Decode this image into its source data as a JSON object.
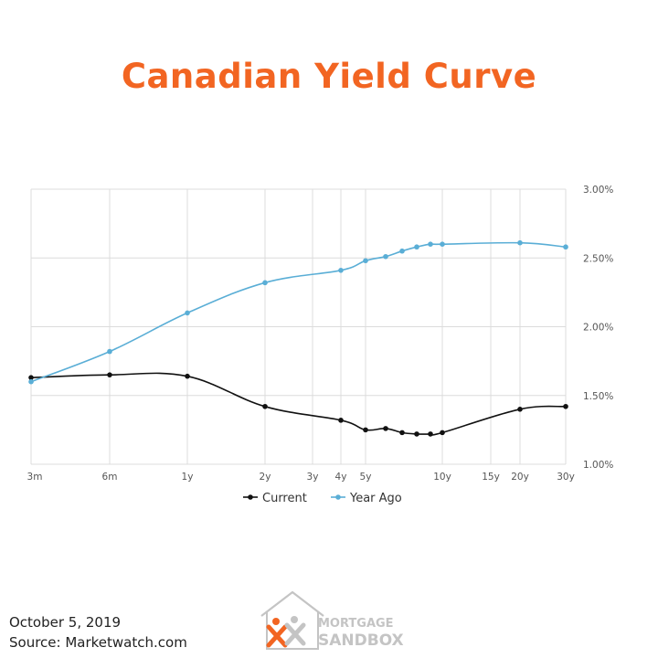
{
  "title": "Canadian Yield Curve",
  "footer": {
    "date": "October 5, 2019",
    "source": "Source: Marketwatch.com"
  },
  "logo": {
    "line1": "MORTGAGE",
    "line2": "SANDBOX"
  },
  "colors": {
    "title": "#f26522",
    "current": "#111111",
    "year_ago": "#5aaed6",
    "grid": "#dcdcdc",
    "logo_orange": "#f26522",
    "logo_gray": "#c4c4c4"
  },
  "chart_data": {
    "type": "line",
    "title": "Canadian Yield Curve",
    "xlabel": "",
    "ylabel": "",
    "ylim": [
      1.0,
      3.0
    ],
    "y_ticks": [
      1.0,
      1.5,
      2.0,
      2.5,
      3.0
    ],
    "y_tick_labels": [
      "1.00%",
      "1.50%",
      "2.00%",
      "2.50%",
      "3.00%"
    ],
    "y_axis_position": "right",
    "grid": true,
    "legend_position": "bottom",
    "x_ticks": [
      "3m",
      "6m",
      "1y",
      "2y",
      "3y",
      "4y",
      "5y",
      "10y",
      "15y",
      "20y",
      "30y"
    ],
    "series": [
      {
        "name": "Current",
        "color": "#111111",
        "points": [
          {
            "x": "3m",
            "y": 1.63
          },
          {
            "x": "6m",
            "y": 1.65
          },
          {
            "x": "1y",
            "y": 1.64
          },
          {
            "x": "2y",
            "y": 1.42
          },
          {
            "x": "4y",
            "y": 1.32
          },
          {
            "x": "5y",
            "y": 1.25
          },
          {
            "x": "6y",
            "y": 1.26
          },
          {
            "x": "7y",
            "y": 1.23
          },
          {
            "x": "8y",
            "y": 1.22
          },
          {
            "x": "9y",
            "y": 1.22
          },
          {
            "x": "10y",
            "y": 1.23
          },
          {
            "x": "20y",
            "y": 1.4
          },
          {
            "x": "30y",
            "y": 1.42
          }
        ]
      },
      {
        "name": "Year Ago",
        "color": "#5aaed6",
        "points": [
          {
            "x": "3m",
            "y": 1.6
          },
          {
            "x": "6m",
            "y": 1.82
          },
          {
            "x": "1y",
            "y": 2.1
          },
          {
            "x": "2y",
            "y": 2.32
          },
          {
            "x": "4y",
            "y": 2.41
          },
          {
            "x": "5y",
            "y": 2.48
          },
          {
            "x": "6y",
            "y": 2.51
          },
          {
            "x": "7y",
            "y": 2.55
          },
          {
            "x": "8y",
            "y": 2.58
          },
          {
            "x": "9y",
            "y": 2.6
          },
          {
            "x": "10y",
            "y": 2.6
          },
          {
            "x": "20y",
            "y": 2.61
          },
          {
            "x": "30y",
            "y": 2.58
          }
        ]
      }
    ]
  }
}
